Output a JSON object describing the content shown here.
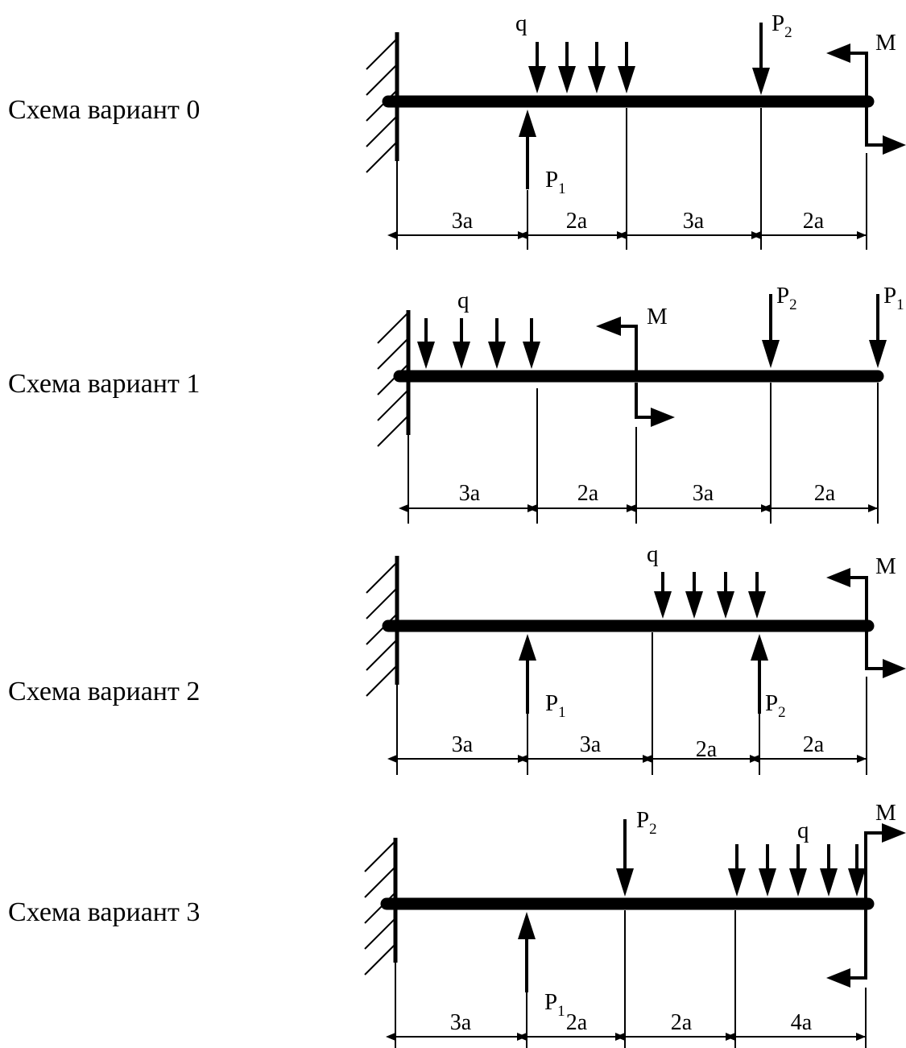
{
  "symbols": {
    "q": "q",
    "P": "P",
    "M": "M",
    "sub1": "1",
    "sub2": "2"
  },
  "schemes": [
    {
      "title": "Схема вариант 0",
      "dimensions": [
        "3a",
        "2a",
        "3a",
        "2a"
      ]
    },
    {
      "title": "Схема вариант 1",
      "dimensions": [
        "3a",
        "2a",
        "3a",
        "2a"
      ]
    },
    {
      "title": "Схема вариант 2",
      "dimensions": [
        "3a",
        "3a",
        "2a",
        "2a"
      ]
    },
    {
      "title": "Схема вариант 3",
      "dimensions": [
        "3a",
        "2a",
        "2a",
        "4a"
      ]
    }
  ]
}
